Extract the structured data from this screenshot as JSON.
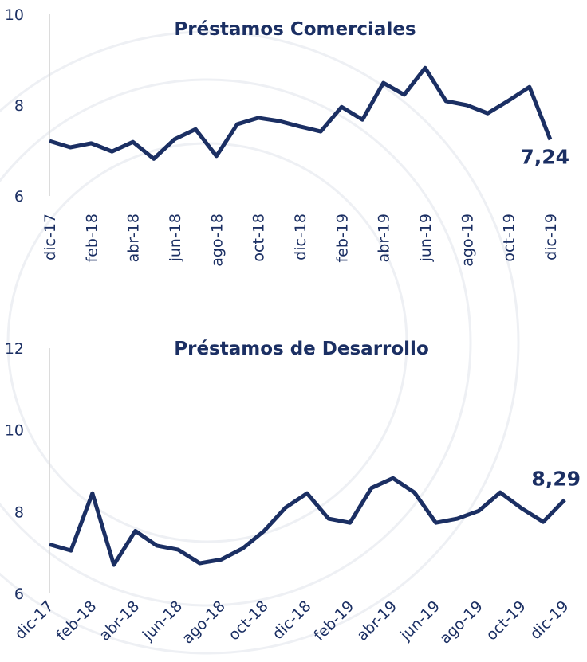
{
  "chart_data": [
    {
      "type": "line",
      "title": "Préstamos Comerciales",
      "categories": [
        "dic-17",
        null,
        "feb-18",
        null,
        "abr-18",
        null,
        "jun-18",
        null,
        "ago-18",
        null,
        "oct-18",
        null,
        "dic-18",
        null,
        "feb-19",
        null,
        "abr-19",
        null,
        "jun-19",
        null,
        "ago-19",
        null,
        "oct-19",
        null,
        "dic-19"
      ],
      "series": [
        {
          "color": "#1b2f63",
          "values": [
            7.21,
            7.07,
            7.16,
            6.98,
            7.19,
            6.82,
            7.25,
            7.47,
            6.88,
            7.58,
            7.72,
            7.65,
            7.53,
            7.42,
            7.96,
            7.68,
            8.49,
            8.23,
            8.82,
            8.09,
            8.0,
            7.82,
            8.1,
            8.4,
            7.24
          ],
          "value_labels": [
            null,
            null,
            null,
            null,
            null,
            null,
            null,
            null,
            null,
            null,
            null,
            null,
            null,
            null,
            null,
            null,
            null,
            null,
            null,
            null,
            null,
            null,
            null,
            null,
            "7,24"
          ]
        }
      ],
      "ylim": [
        6,
        10
      ],
      "yticks": [
        6,
        8,
        10
      ]
    },
    {
      "type": "line",
      "title": "Préstamos de Desarrollo",
      "categories": [
        "dic-17",
        null,
        "feb-18",
        null,
        "abr-18",
        null,
        "jun-18",
        null,
        "ago-18",
        null,
        "oct-18",
        null,
        "dic-18",
        null,
        "feb-19",
        null,
        "abr-19",
        null,
        "jun-19",
        null,
        "ago-19",
        null,
        "oct-19",
        null,
        "dic-19"
      ],
      "series": [
        {
          "color": "#1b2f63",
          "values": [
            7.2,
            7.05,
            8.45,
            6.7,
            7.53,
            7.17,
            7.07,
            6.74,
            6.83,
            7.1,
            7.53,
            8.1,
            8.45,
            7.83,
            7.73,
            8.58,
            8.82,
            8.47,
            7.73,
            7.83,
            8.02,
            8.47,
            8.08,
            7.75,
            8.29
          ],
          "value_labels": [
            null,
            null,
            null,
            null,
            null,
            null,
            null,
            null,
            null,
            null,
            null,
            null,
            null,
            null,
            null,
            null,
            null,
            null,
            null,
            null,
            null,
            null,
            null,
            null,
            "8,29"
          ]
        }
      ],
      "ylim": [
        6,
        12
      ],
      "yticks": [
        6,
        8,
        10,
        12
      ]
    }
  ]
}
